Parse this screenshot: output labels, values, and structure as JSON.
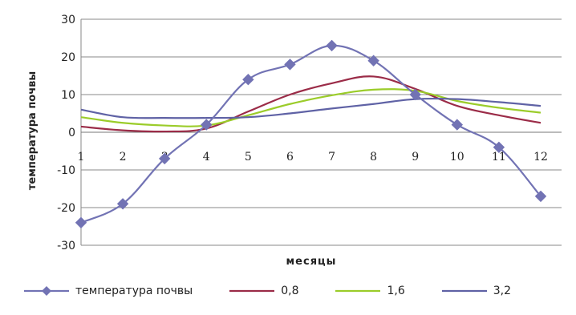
{
  "chart_data": {
    "type": "line",
    "title": "",
    "xlabel": "месяцы",
    "ylabel": "температура почвы",
    "x": [
      1,
      2,
      3,
      4,
      5,
      6,
      7,
      8,
      9,
      10,
      11,
      12
    ],
    "x_tick_labels": [
      "1",
      "2",
      "3",
      "4",
      "5",
      "6",
      "7",
      "8",
      "9",
      "10",
      "11",
      "12"
    ],
    "y_tick_labels": [
      "-30",
      "-20",
      "-10",
      "0",
      "10",
      "20",
      "30"
    ],
    "ylim": [
      -30,
      30
    ],
    "y_ticks": [
      -30,
      -20,
      -10,
      0,
      10,
      20,
      30
    ],
    "grid": "horizontal",
    "legend_position": "bottom",
    "series": [
      {
        "name": "температура почвы",
        "color": "#7273b4",
        "marker": "diamond",
        "values": [
          -24,
          -19,
          -7,
          2,
          14,
          18,
          23,
          19,
          10,
          2,
          -4,
          -17
        ]
      },
      {
        "name": "0,8",
        "color": "#9b2c48",
        "marker": "none",
        "values": [
          1.5,
          0.5,
          0.2,
          1.0,
          5.5,
          10.0,
          13.0,
          14.8,
          11.5,
          7.0,
          4.5,
          2.5
        ]
      },
      {
        "name": "1,6",
        "color": "#9bcc2a",
        "marker": "none",
        "values": [
          4.0,
          2.5,
          1.8,
          1.8,
          4.5,
          7.5,
          9.8,
          11.3,
          11.0,
          8.3,
          6.5,
          5.2
        ]
      },
      {
        "name": "3,2",
        "color": "#5f62a5",
        "marker": "none",
        "values": [
          6.0,
          4.0,
          3.8,
          3.8,
          4.0,
          5.0,
          6.3,
          7.5,
          8.8,
          8.8,
          8.0,
          7.0
        ]
      }
    ]
  }
}
